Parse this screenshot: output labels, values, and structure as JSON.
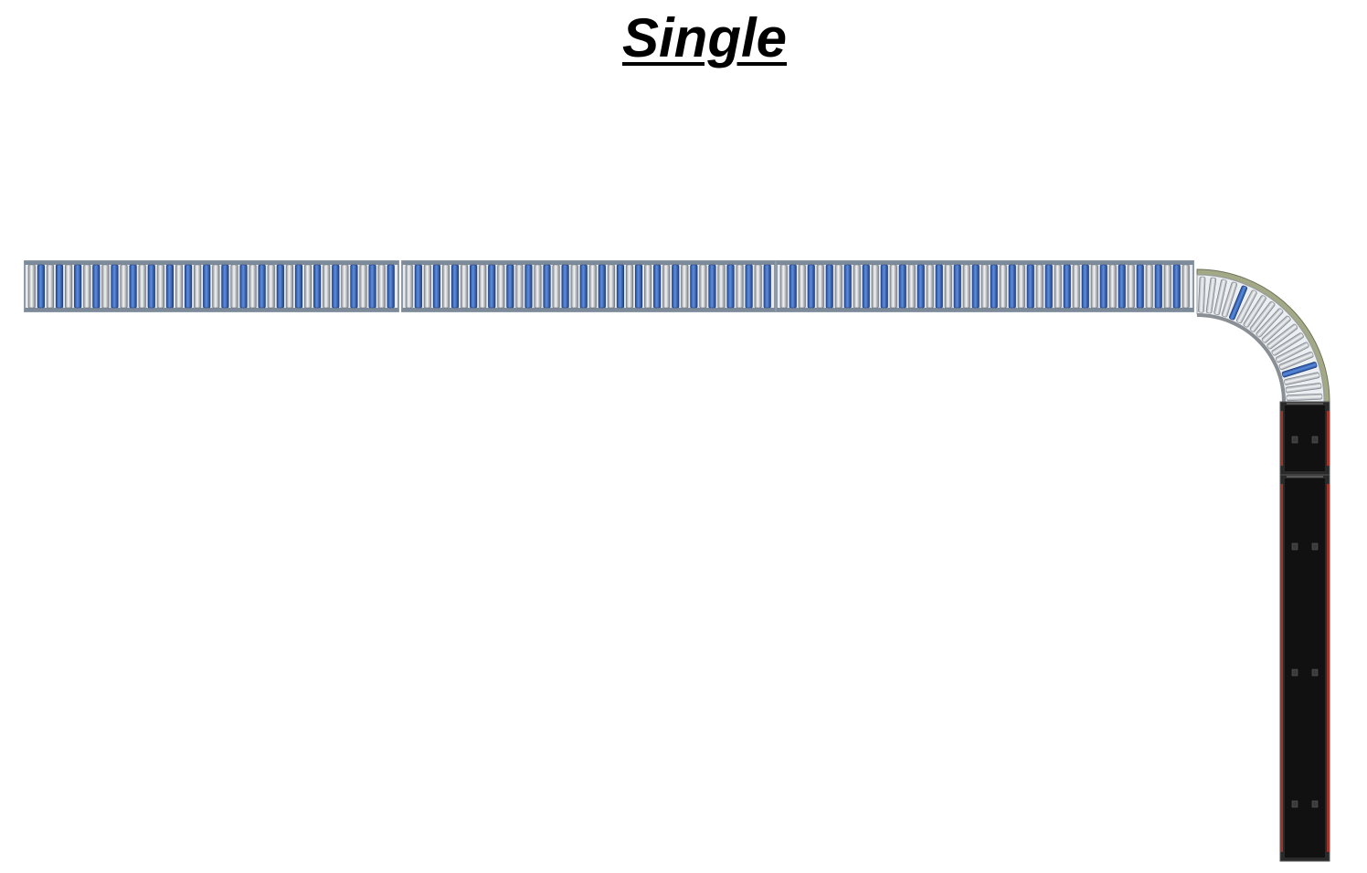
{
  "title": "Single",
  "layout": {
    "straight_sections": [
      {
        "name": "roller-section-1",
        "roller_count": 40
      },
      {
        "name": "roller-section-2",
        "roller_count": 40
      },
      {
        "name": "roller-section-3",
        "roller_count": 45
      }
    ],
    "curve": {
      "name": "roller-curve-90",
      "turn_degrees": 90,
      "roller_count": 18
    },
    "belt_sections": [
      {
        "name": "belt-section-1"
      },
      {
        "name": "belt-section-2"
      }
    ]
  },
  "colors": {
    "roller_gray": "#c9cdd2",
    "roller_blue": "#3f6fc8",
    "frame": "#8e9aa8",
    "curve_rail": "#a3a887",
    "belt": "#111111",
    "belt_accent": "#a0342b"
  }
}
